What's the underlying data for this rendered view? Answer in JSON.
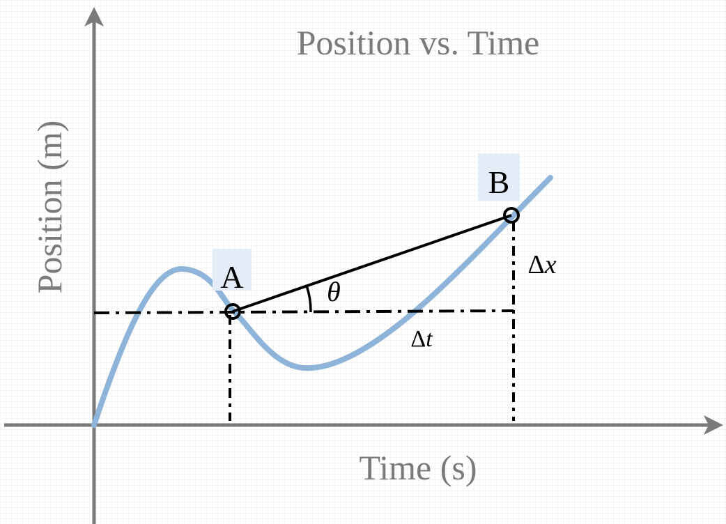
{
  "title": "Position vs. Time",
  "axes": {
    "x_label": "Time (s)",
    "y_label": "Position (m)"
  },
  "points": {
    "a_label": "A",
    "b_label": "B"
  },
  "annotations": {
    "theta": "θ",
    "delta_t_symbol": "Δ",
    "delta_t_var": "t",
    "delta_x_symbol": "Δ",
    "delta_x_var": "x"
  },
  "colors": {
    "axis": "#7a7a7a",
    "curve": "#8fb4d9",
    "secant": "#000000",
    "label_highlight": "#e3ecf7",
    "grid": "#d6d6d6",
    "text_gray": "#7a7a7a"
  }
}
